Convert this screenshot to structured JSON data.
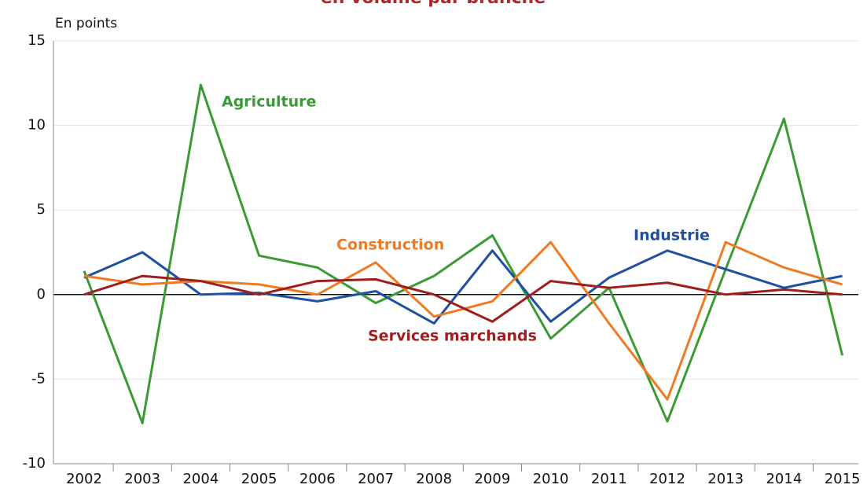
{
  "chart_data": {
    "type": "line",
    "title": "en volume par branche",
    "y_label": "En points",
    "categories": [
      "2002",
      "2003",
      "2004",
      "2005",
      "2006",
      "2007",
      "2008",
      "2009",
      "2010",
      "2011",
      "2012",
      "2013",
      "2014",
      "2015"
    ],
    "series": [
      {
        "name": "Agriculture",
        "color": "#3c9a35",
        "values": [
          1.4,
          -7.6,
          12.4,
          2.3,
          1.6,
          -0.5,
          1.1,
          3.5,
          -2.6,
          0.4,
          -7.5,
          1.5,
          10.4,
          -3.6
        ]
      },
      {
        "name": "Industrie",
        "color": "#1f4fa0",
        "values": [
          1.0,
          2.5,
          0.0,
          0.1,
          -0.4,
          0.2,
          -1.7,
          2.6,
          -1.6,
          1.0,
          2.6,
          1.5,
          0.4,
          1.1
        ]
      },
      {
        "name": "Construction",
        "color": "#f07a22",
        "values": [
          1.1,
          0.6,
          0.8,
          0.6,
          0.0,
          1.9,
          -1.3,
          -0.4,
          3.1,
          -1.7,
          -6.2,
          3.1,
          1.6,
          0.6
        ]
      },
      {
        "name": "Services marchands",
        "color": "#9e1d1d",
        "values": [
          0.0,
          1.1,
          0.8,
          0.0,
          0.8,
          0.9,
          0.0,
          -1.6,
          0.8,
          0.4,
          0.7,
          0.0,
          0.3,
          0.0
        ]
      }
    ],
    "ylim": [
      -10,
      15
    ],
    "yticks": [
      -10,
      -5,
      0,
      5,
      10,
      15
    ],
    "grid": true
  }
}
